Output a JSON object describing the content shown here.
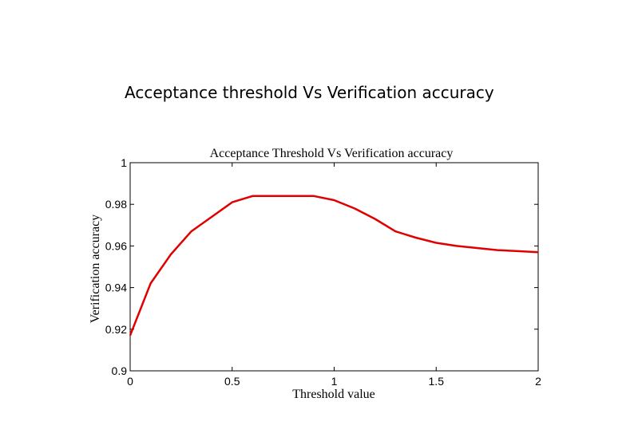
{
  "page": {
    "heading": "Acceptance threshold Vs Verification accuracy"
  },
  "chart_data": {
    "type": "line",
    "title": "Acceptance Threshold Vs Verification accuracy",
    "xlabel": "Threshold value",
    "ylabel": "Verification accuracy",
    "xlim": [
      0,
      2
    ],
    "ylim": [
      0.9,
      1
    ],
    "xticks": [
      0,
      0.5,
      1,
      1.5,
      2
    ],
    "xtick_labels": [
      "0",
      "0.5",
      "1",
      "1.5",
      "2"
    ],
    "yticks": [
      0.9,
      0.92,
      0.94,
      0.96,
      0.98,
      1
    ],
    "ytick_labels": [
      "0.9",
      "0.92",
      "0.94",
      "0.96",
      "0.98",
      "1"
    ],
    "grid": false,
    "series": [
      {
        "color": "#e00000",
        "x": [
          0,
          0.1,
          0.2,
          0.3,
          0.4,
          0.5,
          0.6,
          0.7,
          0.8,
          0.9,
          1.0,
          1.1,
          1.2,
          1.3,
          1.4,
          1.5,
          1.6,
          1.7,
          1.8,
          1.9,
          2.0
        ],
        "y": [
          0.917,
          0.942,
          0.956,
          0.967,
          0.974,
          0.981,
          0.984,
          0.984,
          0.984,
          0.984,
          0.982,
          0.978,
          0.973,
          0.967,
          0.964,
          0.9615,
          0.96,
          0.959,
          0.958,
          0.9575,
          0.957
        ]
      }
    ]
  }
}
